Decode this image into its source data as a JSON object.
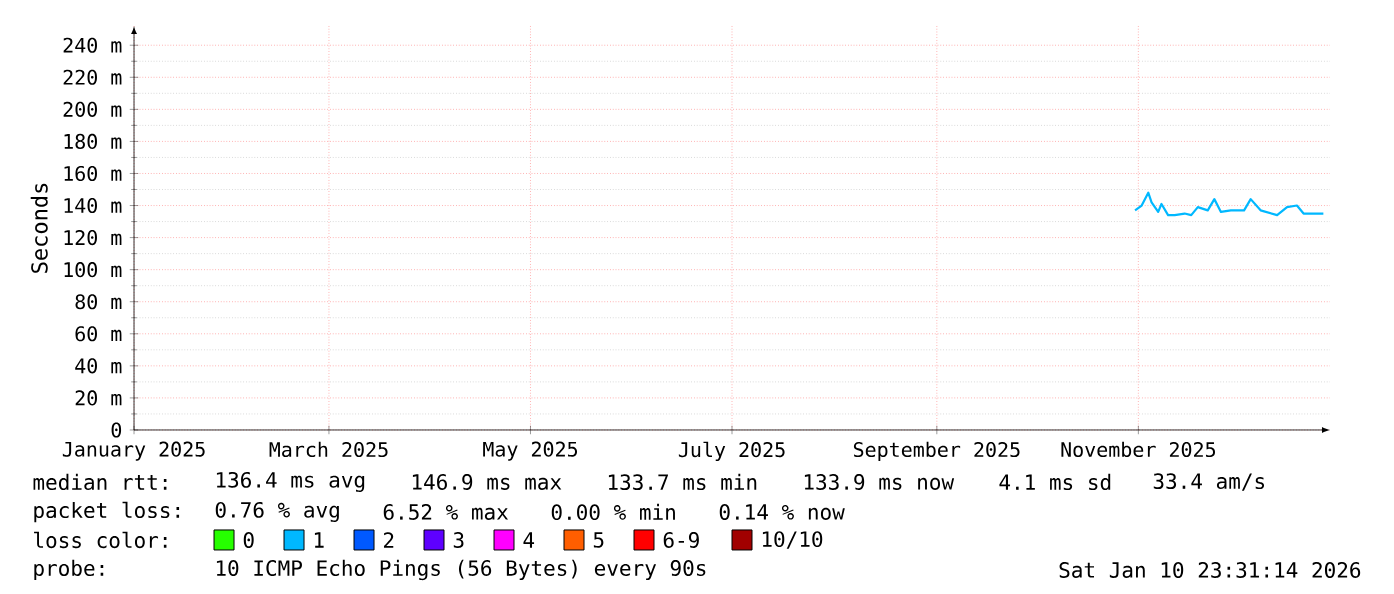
{
  "chart_data": {
    "type": "line",
    "ylabel": "Seconds",
    "legend_title": "loss color:",
    "x": [
      "2025-10-31",
      "2025-11-02",
      "2025-11-04",
      "2025-11-05",
      "2025-11-07",
      "2025-11-08",
      "2025-11-10",
      "2025-11-12",
      "2025-11-15",
      "2025-11-17",
      "2025-11-19",
      "2025-11-22",
      "2025-11-24",
      "2025-11-26",
      "2025-11-29",
      "2025-12-03",
      "2025-12-05",
      "2025-12-08",
      "2025-12-13",
      "2025-12-16",
      "2025-12-19",
      "2025-12-21",
      "2025-12-27"
    ],
    "series": [
      {
        "name": "0",
        "color": "#26ff00",
        "values": [
          null,
          null,
          null,
          null,
          null,
          null,
          null,
          null,
          null,
          null,
          null,
          null,
          null,
          null,
          null,
          null,
          null,
          null,
          null,
          null,
          null,
          null,
          null
        ]
      },
      {
        "name": "1",
        "color": "#00b8ff",
        "values": [
          137,
          140,
          148,
          142,
          136,
          141,
          134,
          134,
          135,
          134,
          139,
          137,
          144,
          136,
          137,
          137,
          144,
          137,
          134,
          139,
          140,
          135,
          135
        ]
      },
      {
        "name": "2",
        "color": "#0059ff",
        "values": [
          null,
          null,
          null,
          null,
          null,
          null,
          null,
          null,
          null,
          null,
          null,
          null,
          null,
          null,
          null,
          null,
          null,
          null,
          null,
          null,
          null,
          null,
          null
        ]
      },
      {
        "name": "3",
        "color": "#5e00ff",
        "values": [
          null,
          null,
          null,
          null,
          null,
          null,
          null,
          null,
          null,
          null,
          null,
          null,
          null,
          null,
          null,
          null,
          null,
          null,
          null,
          null,
          null,
          null,
          null
        ]
      },
      {
        "name": "4",
        "color": "#ff00ff",
        "values": [
          null,
          null,
          null,
          null,
          null,
          null,
          null,
          null,
          null,
          null,
          null,
          null,
          null,
          null,
          null,
          null,
          null,
          null,
          null,
          null,
          null,
          null,
          null
        ]
      },
      {
        "name": "5",
        "color": "#ff5e00",
        "values": [
          null,
          null,
          null,
          null,
          null,
          null,
          null,
          null,
          null,
          null,
          null,
          null,
          null,
          null,
          null,
          null,
          null,
          null,
          null,
          null,
          null,
          null,
          null
        ]
      },
      {
        "name": "6-9",
        "color": "#ff0000",
        "values": [
          null,
          null,
          null,
          null,
          null,
          null,
          null,
          null,
          null,
          null,
          null,
          null,
          null,
          null,
          null,
          null,
          null,
          null,
          null,
          null,
          null,
          null,
          null
        ]
      },
      {
        "name": "10/10",
        "color": "#a10000",
        "values": [
          null,
          null,
          null,
          null,
          null,
          null,
          null,
          null,
          null,
          null,
          null,
          null,
          null,
          null,
          null,
          null,
          null,
          null,
          null,
          null,
          null,
          null,
          null
        ]
      }
    ],
    "xlim": [
      "2025-01-01",
      "2025-12-29"
    ],
    "xticks": [
      {
        "value": "2025-01-01",
        "label": "January 2025"
      },
      {
        "value": "2025-03-01",
        "label": "March 2025"
      },
      {
        "value": "2025-05-01",
        "label": "May 2025"
      },
      {
        "value": "2025-07-01",
        "label": "July 2025"
      },
      {
        "value": "2025-09-01",
        "label": "September 2025"
      },
      {
        "value": "2025-11-01",
        "label": "November 2025"
      }
    ],
    "ylim": [
      0,
      252
    ],
    "yticks": [
      0,
      {
        "value": 20,
        "label": "20 m"
      },
      {
        "value": 40,
        "label": "40 m"
      },
      {
        "value": 60,
        "label": "60 m"
      },
      {
        "value": 80,
        "label": "80 m"
      },
      {
        "value": 100,
        "label": "100 m"
      },
      {
        "value": 120,
        "label": "120 m"
      },
      {
        "value": 140,
        "label": "140 m"
      },
      {
        "value": 160,
        "label": "160 m"
      },
      {
        "value": 180,
        "label": "180 m"
      },
      {
        "value": 200,
        "label": "200 m"
      },
      {
        "value": 220,
        "label": "220 m"
      },
      {
        "value": 240,
        "label": "240 m"
      }
    ],
    "grid": true,
    "legend": "bottom",
    "marker": "none",
    "line_style": "solid",
    "annotations": [
      "median rtt:",
      "136.4 ms avg",
      "146.9 ms max",
      "133.7 ms min",
      "133.9 ms now",
      "4.1 ms sd",
      "33.4   am/s",
      "packet loss:",
      "0.76 % avg",
      "6.52 % max",
      "0.00 % min",
      "0.14 % now",
      "probe:",
      "10 ICMP Echo Pings (56 Bytes) every 90s",
      "Sat Jan 10 23:31:14 2026"
    ]
  }
}
